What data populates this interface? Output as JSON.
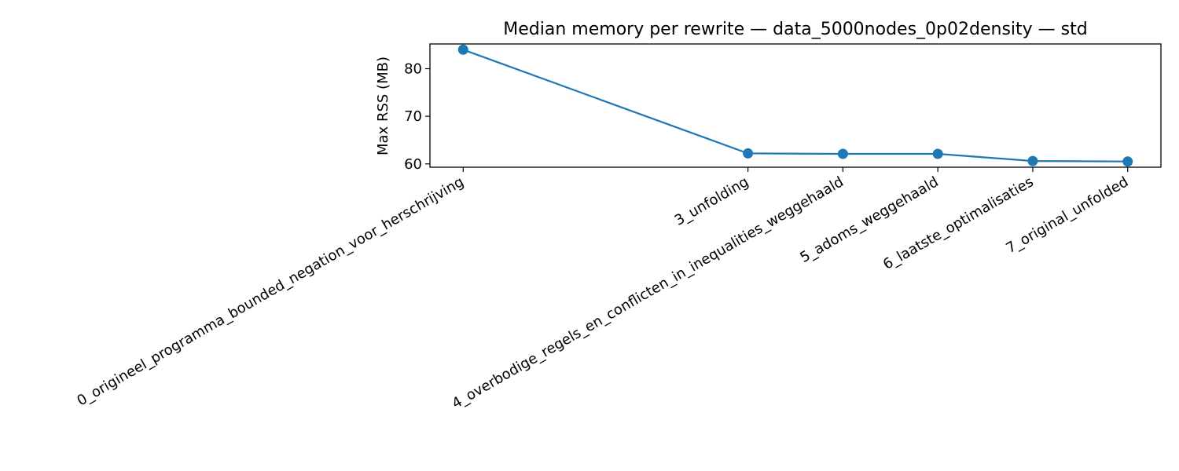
{
  "chart_data": {
    "type": "line",
    "title": "Median memory per rewrite — data_5000nodes_0p02density — std",
    "xlabel": "",
    "ylabel": "Max RSS (MB)",
    "categories": [
      "0_origineel_programma_bounded_negation_voor_herschrijving",
      "3_unfolding",
      "4_overbodige_regels_en_conflicten_in_inequalities_weggehaald",
      "5_adoms_weggehaald",
      "6_laatste_optimalisaties",
      "7_original_unfolded"
    ],
    "x": [
      0,
      3,
      4,
      5,
      6,
      7
    ],
    "series": [
      {
        "values": [
          84.0,
          62.2,
          62.1,
          62.1,
          60.6,
          60.5
        ]
      }
    ],
    "ylim": [
      59.3,
      85.2
    ],
    "xlim": [
      -0.35,
      7.35
    ],
    "yticks": [
      60,
      70,
      80
    ],
    "grid": false,
    "color": "#1f77b4"
  }
}
